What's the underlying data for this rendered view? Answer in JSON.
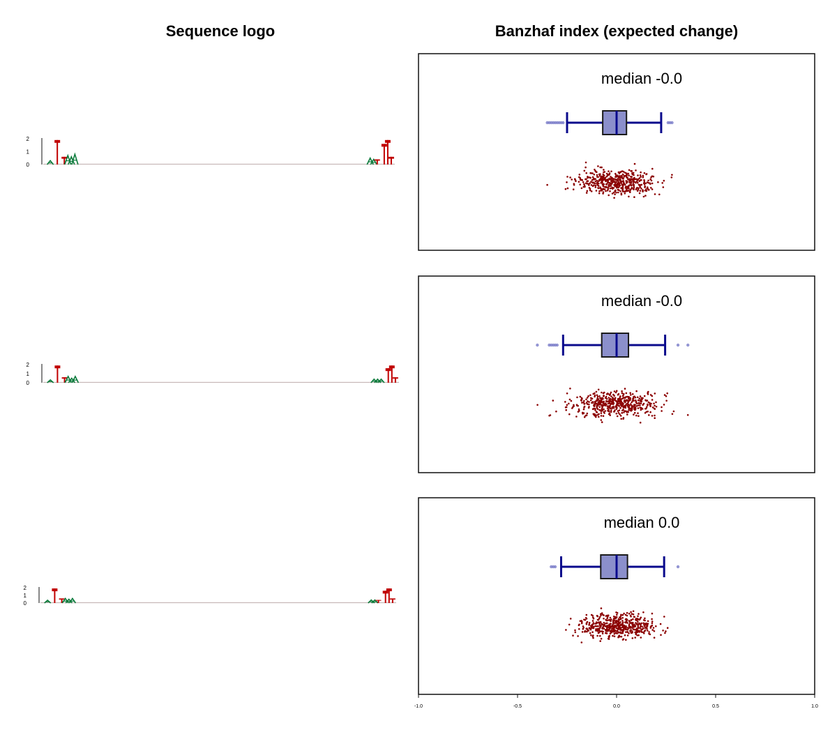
{
  "headers": {
    "left": "Sequence logo",
    "right": "Banzhaf index (expected change)"
  },
  "colors": {
    "box_fill": "#8b8fcb",
    "box_stroke": "#1a1a1a",
    "whisker": "#0a0a8c",
    "outlier": "#6f72c4",
    "points": "#8b0000",
    "logo_T": "#c00000",
    "logo_A": "#0a7a3a",
    "logo_C": "#1f3f8f",
    "logo_G": "#e0a000",
    "baseline": "#c8b9b9"
  },
  "chart_data": [
    {
      "type": "box",
      "title": "median -0.0",
      "median": 0.0,
      "q1": -0.07,
      "q3": 0.05,
      "whisker_low": -0.25,
      "whisker_high": 0.225,
      "outliers": [
        -0.35,
        -0.34,
        -0.33,
        -0.32,
        -0.31,
        -0.3,
        -0.29,
        -0.28,
        -0.27,
        0.26,
        0.27,
        0.28
      ],
      "n_points": 500,
      "points_sd": 0.1,
      "xlim": [
        -1.0,
        1.0
      ],
      "logo": {
        "yticks": [
          "2",
          "1",
          "0"
        ],
        "letters": [
          {
            "pos": 2,
            "char": "A",
            "h": 0.3
          },
          {
            "pos": 4,
            "char": "T",
            "h": 1.9
          },
          {
            "pos": 6,
            "char": "T",
            "h": 0.6
          },
          {
            "pos": 7,
            "char": "A",
            "h": 0.7
          },
          {
            "pos": 8,
            "char": "A",
            "h": 0.6
          },
          {
            "pos": 9,
            "char": "A",
            "h": 0.8
          },
          {
            "pos": 93,
            "char": "A",
            "h": 0.5
          },
          {
            "pos": 94,
            "char": "A",
            "h": 0.4
          },
          {
            "pos": 95,
            "char": "T",
            "h": 0.4
          },
          {
            "pos": 97,
            "char": "T",
            "h": 1.6
          },
          {
            "pos": 98,
            "char": "T",
            "h": 1.9
          },
          {
            "pos": 99,
            "char": "T",
            "h": 0.6
          }
        ]
      }
    },
    {
      "type": "box",
      "title": "median -0.0",
      "median": 0.0,
      "q1": -0.075,
      "q3": 0.06,
      "whisker_low": -0.27,
      "whisker_high": 0.245,
      "outliers": [
        -0.4,
        -0.34,
        -0.33,
        -0.32,
        -0.31,
        -0.3,
        0.31,
        0.36
      ],
      "n_points": 500,
      "points_sd": 0.11,
      "xlim": [
        -1.0,
        1.0
      ],
      "logo": {
        "yticks": [
          "2",
          "1",
          "0"
        ],
        "letters": [
          {
            "pos": 2,
            "char": "A",
            "h": 0.3
          },
          {
            "pos": 4,
            "char": "T",
            "h": 1.9
          },
          {
            "pos": 6,
            "char": "T",
            "h": 0.6
          },
          {
            "pos": 7,
            "char": "A",
            "h": 0.7
          },
          {
            "pos": 8,
            "char": "A",
            "h": 0.5
          },
          {
            "pos": 9,
            "char": "A",
            "h": 0.7
          },
          {
            "pos": 93,
            "char": "A",
            "h": 0.4
          },
          {
            "pos": 94,
            "char": "A",
            "h": 0.4
          },
          {
            "pos": 95,
            "char": "A",
            "h": 0.4
          },
          {
            "pos": 97,
            "char": "T",
            "h": 1.6
          },
          {
            "pos": 98,
            "char": "T",
            "h": 1.9
          },
          {
            "pos": 99,
            "char": "T",
            "h": 0.6
          }
        ]
      }
    },
    {
      "type": "box",
      "title": "median 0.0",
      "median": 0.0,
      "q1": -0.08,
      "q3": 0.055,
      "whisker_low": -0.28,
      "whisker_high": 0.24,
      "outliers": [
        -0.33,
        -0.32,
        -0.31,
        0.31
      ],
      "n_points": 500,
      "points_sd": 0.1,
      "xlim": [
        -1.0,
        1.0
      ],
      "xticks": [
        "-1.0",
        "-0.5",
        "0.0",
        "0.5",
        "1.0"
      ],
      "logo": {
        "yticks": [
          "2",
          "1",
          "0"
        ],
        "letters": [
          {
            "pos": 2,
            "char": "A",
            "h": 0.3
          },
          {
            "pos": 4,
            "char": "T",
            "h": 1.9
          },
          {
            "pos": 6,
            "char": "T",
            "h": 0.6
          },
          {
            "pos": 7,
            "char": "A",
            "h": 0.6
          },
          {
            "pos": 8,
            "char": "A",
            "h": 0.5
          },
          {
            "pos": 9,
            "char": "A",
            "h": 0.6
          },
          {
            "pos": 93,
            "char": "A",
            "h": 0.4
          },
          {
            "pos": 94,
            "char": "A",
            "h": 0.4
          },
          {
            "pos": 95,
            "char": "T",
            "h": 0.4
          },
          {
            "pos": 97,
            "char": "T",
            "h": 1.6
          },
          {
            "pos": 98,
            "char": "T",
            "h": 1.9
          },
          {
            "pos": 99,
            "char": "T",
            "h": 0.6
          }
        ]
      }
    }
  ]
}
